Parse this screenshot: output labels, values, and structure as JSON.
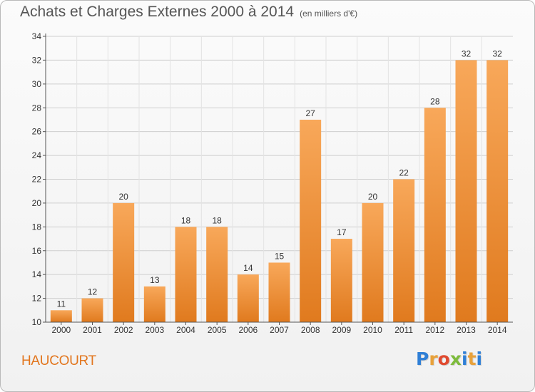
{
  "title": "Achats et Charges Externes 2000 à 2014",
  "subtitle": "(en milliers d'€)",
  "commune": "HAUCOURT",
  "logo": {
    "text": "Proxiti",
    "letters": [
      "P",
      "r",
      "o",
      "x",
      "i",
      "t",
      "i"
    ],
    "colors": [
      "#2f7fd6",
      "#e8a13a",
      "#e04a2f",
      "#7dbb3c",
      "#2f7fd6",
      "#e8a13a",
      "#2f7fd6"
    ]
  },
  "colors": {
    "bar_light": "#f8a85a",
    "bar_dark": "#e07a1e",
    "grid": "#cfcfcf",
    "axis": "#555555",
    "title": "#555555",
    "commune": "#e2761e"
  },
  "chart_data": {
    "type": "bar",
    "title": "Achats et Charges Externes 2000 à 2014",
    "subtitle": "(en milliers d'€)",
    "xlabel": "",
    "ylabel": "",
    "categories": [
      "2000",
      "2001",
      "2002",
      "2003",
      "2004",
      "2005",
      "2006",
      "2007",
      "2008",
      "2009",
      "2010",
      "2011",
      "2012",
      "2013",
      "2014"
    ],
    "values": [
      11,
      12,
      20,
      13,
      18,
      18,
      14,
      15,
      27,
      17,
      20,
      22,
      28,
      32,
      32
    ],
    "ylim": [
      10,
      34
    ],
    "yticks": [
      10,
      12,
      14,
      16,
      18,
      20,
      22,
      24,
      26,
      28,
      30,
      32,
      34
    ],
    "grid": true,
    "data_labels": true
  }
}
